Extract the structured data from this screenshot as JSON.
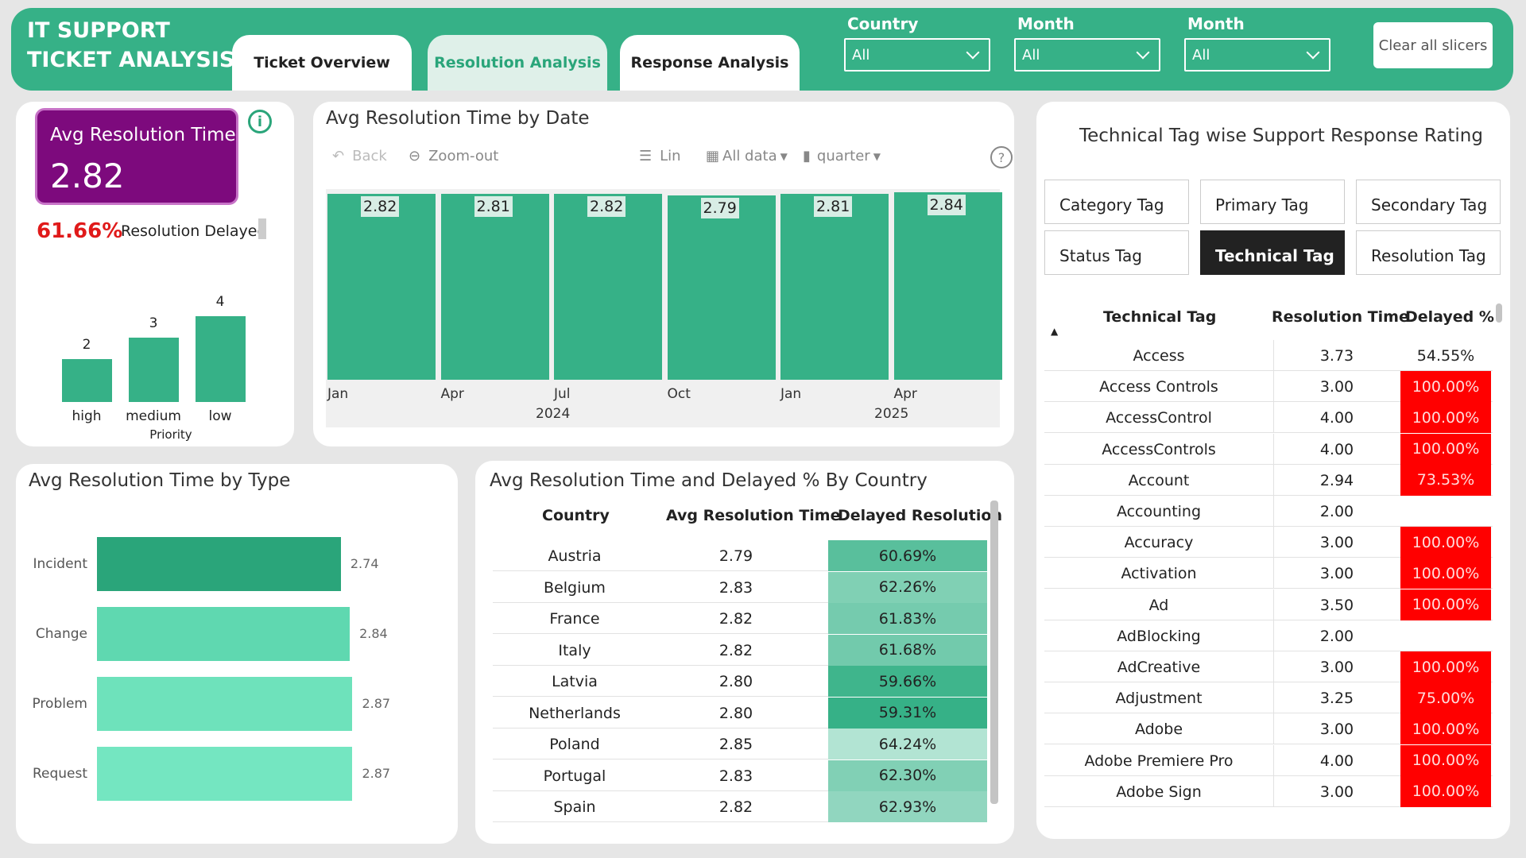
{
  "header": {
    "title_line1": "IT SUPPORT",
    "title_line2": "TICKET ANALYSIS",
    "tabs": [
      {
        "label": "Ticket Overview"
      },
      {
        "label": "Resolution Analysis"
      },
      {
        "label": "Response Analysis"
      }
    ],
    "slicers": [
      {
        "label": "Country",
        "value": "All"
      },
      {
        "label": "Month",
        "value": "All"
      },
      {
        "label": "Month",
        "value": "All"
      }
    ],
    "clear_label": "Clear all slicers"
  },
  "kpi": {
    "label": "Avg Resolution Time",
    "value": "2.82",
    "delayed_pct": "61.66%",
    "delayed_label": "Resolution Delayed"
  },
  "priority_chart": {
    "axis_label": "Priority",
    "categories": [
      "high",
      "medium",
      "low"
    ],
    "values": [
      2,
      3,
      4
    ],
    "color": "#36b187"
  },
  "date_chart": {
    "title": "Avg Resolution Time by Date",
    "toolbar": {
      "back": "Back",
      "zoom_out": "Zoom-out",
      "scale": "Lin",
      "range": "All data",
      "granularity": "quarter",
      "help": "?"
    },
    "chart_data": {
      "type": "bar",
      "categories": [
        "Jan",
        "Apr",
        "Jul",
        "Oct",
        "Jan",
        "Apr"
      ],
      "years": [
        "2024",
        "2025"
      ],
      "values": [
        2.82,
        2.81,
        2.82,
        2.79,
        2.81,
        2.84
      ],
      "value_labels": [
        "2.82",
        "2.81",
        "2.82",
        "2.79",
        "2.81",
        "2.84"
      ],
      "color": "#36b187"
    }
  },
  "type_chart": {
    "title": "Avg Resolution Time by Type",
    "chart_data": {
      "type": "bar",
      "orientation": "horizontal",
      "categories": [
        "Incident",
        "Change",
        "Problem",
        "Request"
      ],
      "values": [
        2.74,
        2.84,
        2.87,
        2.87
      ],
      "value_labels": [
        "2.74",
        "2.84",
        "2.87",
        "2.87"
      ],
      "colors": [
        "#2aa57a",
        "#5fd8b0",
        "#6ee2bb",
        "#74e6c1"
      ]
    }
  },
  "country_table": {
    "title": "Avg Resolution Time and Delayed % By Country",
    "columns": [
      "Country",
      "Avg Resolution Time",
      "Delayed Resolution"
    ],
    "rows": [
      {
        "country": "Austria",
        "avg": "2.79",
        "delayed": "60.69%",
        "pct": 60.69
      },
      {
        "country": "Belgium",
        "avg": "2.83",
        "delayed": "62.26%",
        "pct": 62.26
      },
      {
        "country": "France",
        "avg": "2.82",
        "delayed": "61.83%",
        "pct": 61.83
      },
      {
        "country": "Italy",
        "avg": "2.82",
        "delayed": "61.68%",
        "pct": 61.68
      },
      {
        "country": "Latvia",
        "avg": "2.80",
        "delayed": "59.66%",
        "pct": 59.66
      },
      {
        "country": "Netherlands",
        "avg": "2.80",
        "delayed": "59.31%",
        "pct": 59.31
      },
      {
        "country": "Poland",
        "avg": "2.85",
        "delayed": "64.24%",
        "pct": 64.24
      },
      {
        "country": "Portugal",
        "avg": "2.83",
        "delayed": "62.30%",
        "pct": 62.3
      },
      {
        "country": "Spain",
        "avg": "2.82",
        "delayed": "62.93%",
        "pct": 62.93
      }
    ]
  },
  "tag_table": {
    "title": "Technical Tag wise Support Response Rating",
    "tag_buttons": [
      {
        "label": "Category Tag"
      },
      {
        "label": "Primary Tag"
      },
      {
        "label": "Secondary Tag"
      },
      {
        "label": "Status Tag"
      },
      {
        "label": "Technical Tag"
      },
      {
        "label": "Resolution Tag"
      }
    ],
    "columns": [
      "Technical Tag",
      "Resolution Time",
      "Delayed %"
    ],
    "rows": [
      {
        "tag": "Access",
        "time": "3.73",
        "delayed": "54.55%",
        "red": false
      },
      {
        "tag": "Access Controls",
        "time": "3.00",
        "delayed": "100.00%",
        "red": true
      },
      {
        "tag": "AccessControl",
        "time": "4.00",
        "delayed": "100.00%",
        "red": true
      },
      {
        "tag": "AccessControls",
        "time": "4.00",
        "delayed": "100.00%",
        "red": true
      },
      {
        "tag": "Account",
        "time": "2.94",
        "delayed": "73.53%",
        "red": true
      },
      {
        "tag": "Accounting",
        "time": "2.00",
        "delayed": "",
        "red": false
      },
      {
        "tag": "Accuracy",
        "time": "3.00",
        "delayed": "100.00%",
        "red": true
      },
      {
        "tag": "Activation",
        "time": "3.00",
        "delayed": "100.00%",
        "red": true
      },
      {
        "tag": "Ad",
        "time": "3.50",
        "delayed": "100.00%",
        "red": true
      },
      {
        "tag": "AdBlocking",
        "time": "2.00",
        "delayed": "",
        "red": false
      },
      {
        "tag": "AdCreative",
        "time": "3.00",
        "delayed": "100.00%",
        "red": true
      },
      {
        "tag": "Adjustment",
        "time": "3.25",
        "delayed": "75.00%",
        "red": true
      },
      {
        "tag": "Adobe",
        "time": "3.00",
        "delayed": "100.00%",
        "red": true
      },
      {
        "tag": "Adobe Premiere Pro",
        "time": "4.00",
        "delayed": "100.00%",
        "red": true
      },
      {
        "tag": "Adobe Sign",
        "time": "3.00",
        "delayed": "100.00%",
        "red": true
      }
    ]
  }
}
